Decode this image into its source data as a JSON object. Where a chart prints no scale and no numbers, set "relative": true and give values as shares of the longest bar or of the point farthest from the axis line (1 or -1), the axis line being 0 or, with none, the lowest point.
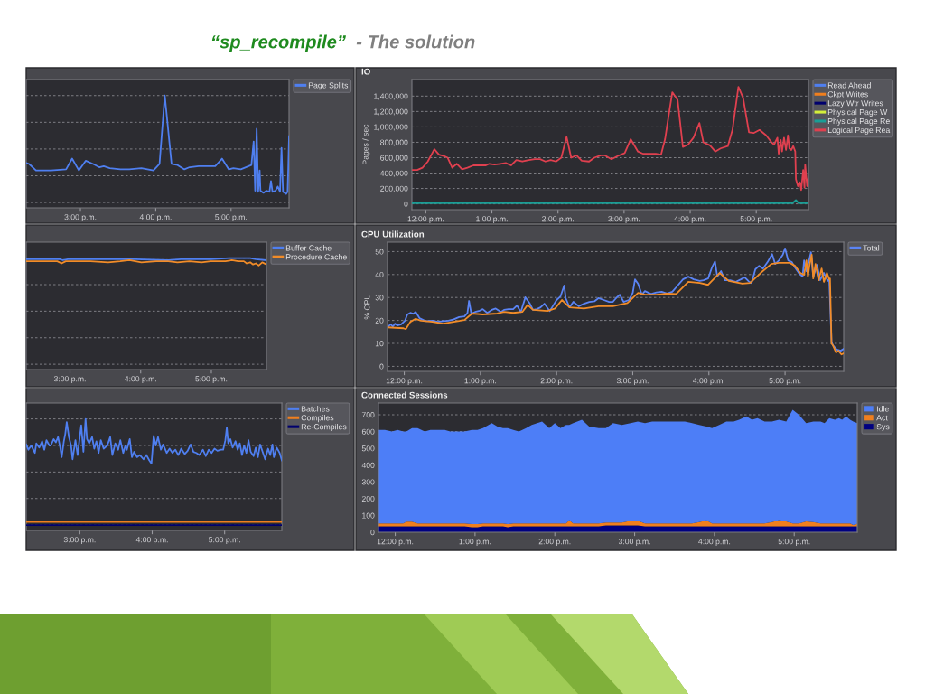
{
  "chart_data": [
    {
      "type": "line",
      "relative": true,
      "annotations": [
        "“sp_recompile”",
        "- The solution"
      ],
      "x": [
        14.28,
        14.32,
        14.41,
        14.61,
        14.81,
        14.89,
        14.98,
        15.07,
        15.17,
        15.25,
        15.31,
        15.39,
        15.53,
        15.65,
        15.81,
        15.97,
        16.05,
        16.12,
        16.21,
        16.29,
        16.38,
        16.45,
        16.57,
        16.79,
        16.88,
        16.97,
        17.03,
        17.13,
        17.27,
        17.3,
        17.32,
        17.34,
        17.36,
        17.38,
        17.39,
        17.43,
        17.47,
        17.51,
        17.53,
        17.55,
        17.59,
        17.62,
        17.65,
        17.67,
        17.69,
        17.73,
        17.75,
        17.76,
        17.77
      ],
      "series": [
        {
          "name": "Page Splits",
          "color": "#4f7ff0",
          "values": [
            0.37,
            0.36,
            0.3,
            0.3,
            0.31,
            0.41,
            0.3,
            0.39,
            0.36,
            0.33,
            0.34,
            0.32,
            0.31,
            0.31,
            0.32,
            0.3,
            0.36,
            1.0,
            0.36,
            0.35,
            0.31,
            0.33,
            0.34,
            0.34,
            0.41,
            0.31,
            0.32,
            0.31,
            0.35,
            0.57,
            0.11,
            0.69,
            0.1,
            0.3,
            0.11,
            0.09,
            0.11,
            0.1,
            0.2,
            0.1,
            0.11,
            0.15,
            0.1,
            0.51,
            0.1,
            0.08,
            0.1,
            0.33,
            0.62
          ]
        }
      ],
      "xlim": [
        14.28,
        17.77
      ],
      "xticks": [
        {
          "value": 15,
          "label": "3:00 p.m."
        },
        {
          "value": 16,
          "label": "4:00 p.m."
        },
        {
          "value": 17,
          "label": "5:00 p.m."
        }
      ],
      "grid": "y",
      "legend": "right"
    },
    {
      "type": "line",
      "title": "IO",
      "ylabel": "Pages / sec",
      "series": [
        {
          "name": "Read Ahead",
          "color": "#4f7ff0"
        },
        {
          "name": "Ckpt Writes",
          "color": "#f07f1e"
        },
        {
          "name": "Lazy Wtr Writes",
          "color": "#00006e"
        },
        {
          "name": "Physical Page W",
          "color": "#d4ef3a"
        },
        {
          "name": "Physical Page Re",
          "color": "#1a9e96",
          "x": [
            11.79,
            17.55,
            17.6,
            17.64,
            17.79
          ],
          "values": [
            10000,
            10000,
            50000,
            10000,
            10000
          ]
        },
        {
          "name": "Logical Page Rea",
          "color": "#e0404f",
          "x": [
            11.79,
            11.87,
            11.95,
            12.03,
            12.13,
            12.2,
            12.28,
            12.33,
            12.4,
            12.47,
            12.55,
            12.63,
            12.72,
            12.83,
            12.91,
            12.96,
            13.04,
            13.13,
            13.21,
            13.29,
            13.37,
            13.46,
            13.56,
            13.65,
            13.73,
            13.81,
            13.89,
            13.97,
            14.05,
            14.13,
            14.2,
            14.28,
            14.36,
            14.47,
            14.55,
            14.65,
            14.71,
            14.81,
            14.9,
            15.01,
            15.1,
            15.21,
            15.29,
            15.37,
            15.48,
            15.56,
            15.62,
            15.67,
            15.73,
            15.81,
            15.89,
            15.97,
            16.05,
            16.14,
            16.2,
            16.3,
            16.38,
            16.46,
            16.57,
            16.64,
            16.73,
            16.8,
            16.89,
            16.96,
            17.05,
            17.15,
            17.23,
            17.27,
            17.32,
            17.34,
            17.37,
            17.39,
            17.42,
            17.45,
            17.48,
            17.5,
            17.53,
            17.56,
            17.59,
            17.6,
            17.63,
            17.66,
            17.68,
            17.71,
            17.73,
            17.74,
            17.77,
            17.79
          ],
          "values": [
            440000,
            440000,
            470000,
            550000,
            710000,
            640000,
            620000,
            600000,
            470000,
            520000,
            450000,
            470000,
            500000,
            500000,
            500000,
            520000,
            510000,
            520000,
            530000,
            500000,
            570000,
            550000,
            570000,
            580000,
            580000,
            550000,
            570000,
            550000,
            600000,
            870000,
            600000,
            630000,
            560000,
            550000,
            600000,
            630000,
            630000,
            580000,
            620000,
            660000,
            840000,
            680000,
            650000,
            650000,
            650000,
            640000,
            840000,
            1120000,
            1450000,
            1350000,
            740000,
            770000,
            860000,
            1050000,
            800000,
            760000,
            680000,
            720000,
            750000,
            960000,
            1520000,
            1380000,
            930000,
            920000,
            960000,
            890000,
            800000,
            770000,
            860000,
            650000,
            830000,
            680000,
            860000,
            700000,
            890000,
            720000,
            700000,
            750000,
            680000,
            320000,
            230000,
            280000,
            180000,
            440000,
            210000,
            510000,
            230000,
            350000
          ]
        }
      ],
      "xlim": [
        11.79,
        17.79
      ],
      "ylim": [
        -75000,
        1615000
      ],
      "xticks": [
        {
          "value": 12,
          "label": "12:00 p.m."
        },
        {
          "value": 13,
          "label": "1:00 p.m."
        },
        {
          "value": 14,
          "label": "2:00 p.m."
        },
        {
          "value": 15,
          "label": "3:00 p.m."
        },
        {
          "value": 16,
          "label": "4:00 p.m."
        },
        {
          "value": 17,
          "label": "5:00 p.m."
        }
      ],
      "yticks": [
        0,
        {
          "value": 200000,
          "label": "200,000"
        },
        {
          "value": 400000,
          "label": "400,000"
        },
        {
          "value": 600000,
          "label": "600,000"
        },
        {
          "value": 800000,
          "label": "800,000"
        },
        {
          "value": 1000000,
          "label": "1,000,000"
        },
        {
          "value": 1200000,
          "label": "1,200,000"
        },
        {
          "value": 1400000,
          "label": "1,400,000"
        }
      ],
      "grid": "y",
      "legend": "right"
    },
    {
      "type": "line",
      "relative": true,
      "series": [
        {
          "name": "Buffer Cache",
          "color": "#4f7ff0",
          "x": [
            14.38,
            14.86,
            14.9,
            14.97,
            15.71,
            15.93,
            16.39,
            16.57,
            16.99,
            17.25,
            17.42,
            17.55,
            17.63,
            17.78
          ],
          "values": [
            0.99,
            0.99,
            0.98,
            0.99,
            0.99,
            0.99,
            0.98,
            0.99,
            0.99,
            1.0,
            1.0,
            1.0,
            0.99,
            0.98
          ]
        },
        {
          "name": "Procedure Cache",
          "color": "#f28c28",
          "x": [
            14.38,
            14.82,
            14.88,
            14.94,
            15.29,
            15.54,
            15.71,
            15.84,
            16.01,
            16.22,
            16.39,
            16.52,
            16.69,
            16.86,
            16.99,
            17.2,
            17.29,
            17.38,
            17.46,
            17.5,
            17.55,
            17.59,
            17.63,
            17.67,
            17.72,
            17.78
          ],
          "values": [
            0.97,
            0.97,
            0.95,
            0.97,
            0.97,
            0.96,
            0.97,
            0.98,
            0.96,
            0.97,
            0.97,
            0.96,
            0.97,
            0.96,
            0.97,
            0.97,
            0.98,
            0.97,
            0.97,
            0.95,
            0.96,
            0.94,
            0.95,
            0.93,
            0.96,
            0.94
          ]
        }
      ],
      "xlim": [
        14.38,
        17.78
      ],
      "xticks": [
        {
          "value": 15,
          "label": "3:00 p.m."
        },
        {
          "value": 16,
          "label": "4:00 p.m."
        },
        {
          "value": 17,
          "label": "5:00 p.m."
        }
      ],
      "grid": "y",
      "legend": "right"
    },
    {
      "type": "line",
      "title": "CPU Utilization",
      "ylabel": "% CPU",
      "series": [
        {
          "name": "Total",
          "color": "#5b84f5",
          "x": [
            11.78,
            11.82,
            11.85,
            11.88,
            11.91,
            11.96,
            12.01,
            12.04,
            12.08,
            12.12,
            12.15,
            12.18,
            12.2,
            12.25,
            12.29,
            12.37,
            12.44,
            12.51,
            12.58,
            12.65,
            12.72,
            12.79,
            12.83,
            12.85,
            12.88,
            12.93,
            12.98,
            13.03,
            13.09,
            13.15,
            13.2,
            13.27,
            13.31,
            13.37,
            13.43,
            13.48,
            13.53,
            13.59,
            13.65,
            13.69,
            13.74,
            13.79,
            13.84,
            13.91,
            13.95,
            14.0,
            14.05,
            14.1,
            14.12,
            14.17,
            14.22,
            14.29,
            14.36,
            14.43,
            14.5,
            14.55,
            14.62,
            14.69,
            14.74,
            14.78,
            14.83,
            14.88,
            14.95,
            15.0,
            15.03,
            15.07,
            15.12,
            15.16,
            15.24,
            15.31,
            15.38,
            15.45,
            15.52,
            15.59,
            15.66,
            15.73,
            15.8,
            15.88,
            15.93,
            15.99,
            16.04,
            16.08,
            16.11,
            16.16,
            16.21,
            16.28,
            16.35,
            16.42,
            16.47,
            16.52,
            16.56,
            16.61,
            16.66,
            16.71,
            16.77,
            16.83,
            16.87,
            16.92,
            16.97,
            17.0,
            17.04,
            17.09,
            17.13,
            17.18,
            17.23,
            17.25,
            17.28,
            17.31,
            17.34,
            17.37,
            17.42,
            17.46,
            17.51,
            17.56,
            17.58,
            17.61,
            17.63,
            17.68,
            17.73,
            17.77
          ],
          "values": [
            17.0,
            18.3,
            17.4,
            18.6,
            17.8,
            18.3,
            19.9,
            22.6,
            23.3,
            22.9,
            23.7,
            22.1,
            21.0,
            20.2,
            19.7,
            19.9,
            19.4,
            19.7,
            19.9,
            20.5,
            21.5,
            21.8,
            23.3,
            28.5,
            23.0,
            23.7,
            24.1,
            24.9,
            23.3,
            24.6,
            25.2,
            23.7,
            24.6,
            24.9,
            24.9,
            26.5,
            23.7,
            30.1,
            27.3,
            24.6,
            24.9,
            25.7,
            27.3,
            24.1,
            26.2,
            28.9,
            30.4,
            35.2,
            29.7,
            25.7,
            28.1,
            26.2,
            27.3,
            28.1,
            28.4,
            29.7,
            28.9,
            28.1,
            28.1,
            29.7,
            31.2,
            28.1,
            28.9,
            32.0,
            37.9,
            36.0,
            31.2,
            32.8,
            31.5,
            32.2,
            32.5,
            31.7,
            32.5,
            35.2,
            37.9,
            39.1,
            37.9,
            37.2,
            37.5,
            38.3,
            43.1,
            45.7,
            39.1,
            41.5,
            37.5,
            37.5,
            36.8,
            37.9,
            38.8,
            37.1,
            36.3,
            42.3,
            43.8,
            42.6,
            45.4,
            48.9,
            44.6,
            46.2,
            48.6,
            51.4,
            46.2,
            45.4,
            43.1,
            40.7,
            39.1,
            46.2,
            41.5,
            45.4,
            49.7,
            39.1,
            44.2,
            37.5,
            40.7,
            37.2,
            37.9,
            10.7,
            9.1,
            7.3,
            6.8,
            7.6
          ]
        },
        {
          "color": "#f28c28",
          "x": [
            11.78,
            11.99,
            12.02,
            12.08,
            12.15,
            12.22,
            12.37,
            12.51,
            12.65,
            12.79,
            12.89,
            13.03,
            13.22,
            13.31,
            13.43,
            13.55,
            13.62,
            13.69,
            13.88,
            13.98,
            14.07,
            14.17,
            14.36,
            14.55,
            14.74,
            14.93,
            15.07,
            15.16,
            15.31,
            15.45,
            15.57,
            15.73,
            15.88,
            15.99,
            16.14,
            16.26,
            16.44,
            16.54,
            16.68,
            16.82,
            16.92,
            17.06,
            17.13,
            17.2,
            17.25,
            17.28,
            17.3,
            17.32,
            17.35,
            17.37,
            17.4,
            17.44,
            17.48,
            17.51,
            17.55,
            17.58,
            17.59,
            17.61,
            17.63,
            17.67,
            17.7,
            17.74,
            17.77
          ],
          "values": [
            17.0,
            16.6,
            16.2,
            19.4,
            20.7,
            19.9,
            19.4,
            18.6,
            19.4,
            20.2,
            23.0,
            22.6,
            23.0,
            23.7,
            23.3,
            23.7,
            26.8,
            24.6,
            24.1,
            25.2,
            28.9,
            25.7,
            25.2,
            26.2,
            26.2,
            27.6,
            32.0,
            31.2,
            31.2,
            31.7,
            31.5,
            36.8,
            36.3,
            35.5,
            40.7,
            37.2,
            36.0,
            36.3,
            40.7,
            44.6,
            45.1,
            45.1,
            43.8,
            40.7,
            39.9,
            46.2,
            39.1,
            43.8,
            48.6,
            38.3,
            44.6,
            37.5,
            42.6,
            36.8,
            40.7,
            37.9,
            38.3,
            9.9,
            9.1,
            6.0,
            6.8,
            5.2,
            5.7
          ]
        }
      ],
      "xlim": [
        11.78,
        17.77
      ],
      "ylim": [
        -2.2,
        54.1
      ],
      "xticks": [
        {
          "value": 12,
          "label": "12:00 p.m."
        },
        {
          "value": 13,
          "label": "1:00 p.m."
        },
        {
          "value": 14,
          "label": "2:00 p.m."
        },
        {
          "value": 15,
          "label": "3:00 p.m."
        },
        {
          "value": 16,
          "label": "4:00 p.m."
        },
        {
          "value": 17,
          "label": "5:00 p.m."
        }
      ],
      "yticks": [
        0,
        10,
        20,
        30,
        40,
        50
      ],
      "grid": "y",
      "legend": "right"
    },
    {
      "type": "line",
      "relative": true,
      "series": [
        {
          "name": "Batches",
          "color": "#4f7ff0",
          "x": [
            14.26,
            14.29,
            14.33,
            14.38,
            14.4,
            14.44,
            14.48,
            14.51,
            14.54,
            14.58,
            14.6,
            14.64,
            14.67,
            14.7,
            14.73,
            14.75,
            14.78,
            14.8,
            14.82,
            14.85,
            14.88,
            14.9,
            14.94,
            14.97,
            15.0,
            15.02,
            15.05,
            15.08,
            15.1,
            15.13,
            15.17,
            15.2,
            15.23,
            15.26,
            15.29,
            15.33,
            15.38,
            15.42,
            15.45,
            15.49,
            15.53,
            15.56,
            15.6,
            15.63,
            15.65,
            15.69,
            15.72,
            15.75,
            15.79,
            15.83,
            15.88,
            15.92,
            15.96,
            15.99,
            16.02,
            16.05,
            16.08,
            16.12,
            16.15,
            16.2,
            16.24,
            16.28,
            16.32,
            16.36,
            16.4,
            16.45,
            16.49,
            16.53,
            16.57,
            16.61,
            16.65,
            16.7,
            16.74,
            16.78,
            16.82,
            16.86,
            16.9,
            16.95,
            16.98,
            17.01,
            17.03,
            17.05,
            17.08,
            17.11,
            17.15,
            17.18,
            17.21,
            17.24,
            17.27,
            17.3,
            17.33,
            17.36,
            17.4,
            17.43,
            17.46,
            17.49,
            17.53,
            17.56,
            17.6,
            17.63,
            17.66,
            17.68,
            17.72,
            17.76,
            17.79
          ],
          "values": [
            0.76,
            0.71,
            0.75,
            0.68,
            0.77,
            0.73,
            0.79,
            0.71,
            0.8,
            0.75,
            0.75,
            0.81,
            0.78,
            0.83,
            0.73,
            0.64,
            0.79,
            0.86,
            0.97,
            0.83,
            0.75,
            0.62,
            0.8,
            0.66,
            0.83,
            0.94,
            0.69,
            1.0,
            0.81,
            0.77,
            0.83,
            0.72,
            0.79,
            0.68,
            0.8,
            0.72,
            0.75,
            0.83,
            0.66,
            0.77,
            0.71,
            0.8,
            0.68,
            0.75,
            0.71,
            0.81,
            0.64,
            0.69,
            0.64,
            0.66,
            0.62,
            0.66,
            0.61,
            0.58,
            0.84,
            0.75,
            0.83,
            0.71,
            0.76,
            0.68,
            0.72,
            0.68,
            0.71,
            0.66,
            0.72,
            0.67,
            0.7,
            0.76,
            0.69,
            0.68,
            0.66,
            0.71,
            0.65,
            0.71,
            0.68,
            0.72,
            0.7,
            0.71,
            0.71,
            0.8,
            0.92,
            0.77,
            0.81,
            0.73,
            0.79,
            0.71,
            0.77,
            0.66,
            0.75,
            0.68,
            0.8,
            0.69,
            0.65,
            0.73,
            0.64,
            0.76,
            0.68,
            0.62,
            0.72,
            0.66,
            0.76,
            0.64,
            0.73,
            0.68,
            0.61
          ]
        },
        {
          "name": "Compiles",
          "color": "#f07f1e",
          "x": [
            14.26,
            17.79
          ],
          "values": [
            0.03,
            0.03
          ]
        },
        {
          "name": "Re-Compiles",
          "color": "#00006e",
          "x": [
            14.26,
            17.79
          ],
          "values": [
            0,
            0
          ]
        }
      ],
      "xlim": [
        14.26,
        17.79
      ],
      "xticks": [
        {
          "value": 15,
          "label": "3:00 p.m."
        },
        {
          "value": 16,
          "label": "4:00 p.m."
        },
        {
          "value": 17,
          "label": "5:00 p.m."
        }
      ],
      "grid": "y",
      "legend": "right"
    },
    {
      "type": "area",
      "stacked": true,
      "title": "Connected Sessions",
      "x": [
        11.79,
        11.87,
        11.96,
        12.03,
        12.1,
        12.14,
        12.21,
        12.28,
        12.37,
        12.44,
        12.53,
        12.62,
        12.69,
        12.78,
        12.87,
        12.96,
        13.03,
        13.1,
        13.21,
        13.28,
        13.35,
        13.41,
        13.48,
        13.55,
        13.64,
        13.71,
        13.84,
        13.93,
        14.0,
        14.07,
        14.14,
        14.18,
        14.23,
        14.34,
        14.43,
        14.55,
        14.64,
        14.73,
        14.84,
        14.95,
        15.04,
        15.13,
        15.22,
        15.32,
        15.41,
        15.54,
        15.63,
        15.72,
        15.81,
        15.9,
        15.97,
        16.06,
        16.15,
        16.24,
        16.31,
        16.4,
        16.47,
        16.54,
        16.63,
        16.72,
        16.81,
        16.9,
        16.98,
        17.06,
        17.15,
        17.24,
        17.33,
        17.38,
        17.44,
        17.51,
        17.56,
        17.6,
        17.65,
        17.7,
        17.74,
        17.79
      ],
      "series": [
        {
          "name": "Sys",
          "color": "#000080",
          "values": [
            35,
            35,
            35,
            35,
            35,
            35,
            35,
            35,
            35,
            35,
            35,
            35,
            35,
            35,
            35,
            30,
            30,
            35,
            35,
            35,
            35,
            30,
            35,
            35,
            35,
            35,
            35,
            35,
            35,
            35,
            35,
            35,
            35,
            35,
            35,
            35,
            40,
            40,
            40,
            40,
            40,
            35,
            35,
            35,
            35,
            35,
            35,
            35,
            35,
            35,
            35,
            35,
            35,
            35,
            35,
            35,
            35,
            35,
            35,
            35,
            35,
            35,
            35,
            35,
            35,
            35,
            35,
            35,
            35,
            35,
            35,
            35,
            35,
            35,
            35,
            35
          ]
        },
        {
          "name": "Act",
          "color": "#f07f1e",
          "values": [
            18,
            18,
            18,
            18,
            18,
            28,
            28,
            18,
            18,
            18,
            18,
            18,
            18,
            18,
            18,
            18,
            18,
            18,
            18,
            18,
            18,
            18,
            18,
            18,
            18,
            18,
            18,
            18,
            18,
            18,
            18,
            38,
            18,
            18,
            18,
            18,
            18,
            18,
            18,
            29,
            29,
            18,
            18,
            18,
            18,
            18,
            18,
            18,
            25,
            36,
            18,
            18,
            18,
            18,
            18,
            18,
            18,
            18,
            18,
            25,
            38,
            30,
            18,
            18,
            30,
            25,
            18,
            18,
            18,
            18,
            18,
            18,
            18,
            18,
            8,
            15
          ]
        },
        {
          "name": "Idle",
          "color": "#4d7ef7",
          "values": [
            557,
            557,
            547,
            557,
            547,
            537,
            557,
            567,
            547,
            557,
            557,
            557,
            547,
            547,
            547,
            562,
            562,
            567,
            597,
            577,
            567,
            572,
            557,
            547,
            567,
            587,
            607,
            567,
            597,
            567,
            587,
            567,
            597,
            617,
            577,
            567,
            562,
            592,
            582,
            581,
            591,
            597,
            607,
            607,
            607,
            607,
            607,
            597,
            580,
            559,
            567,
            587,
            607,
            607,
            617,
            637,
            617,
            627,
            607,
            600,
            597,
            595,
            677,
            647,
            585,
            600,
            607,
            597,
            627,
            617,
            627,
            617,
            637,
            617,
            617,
            600
          ]
        }
      ],
      "xlim": [
        11.79,
        17.79
      ],
      "ylim": [
        0,
        770
      ],
      "xticks": [
        {
          "value": 12,
          "label": "12:00 p.m."
        },
        {
          "value": 13,
          "label": "1:00 p.m."
        },
        {
          "value": 14,
          "label": "2:00 p.m."
        },
        {
          "value": 15,
          "label": "3:00 p.m."
        },
        {
          "value": 16,
          "label": "4:00 p.m."
        },
        {
          "value": 17,
          "label": "5:00 p.m."
        }
      ],
      "yticks": [
        0,
        100,
        200,
        300,
        400,
        500,
        600,
        700
      ],
      "grid": "y",
      "legend": "right"
    }
  ]
}
